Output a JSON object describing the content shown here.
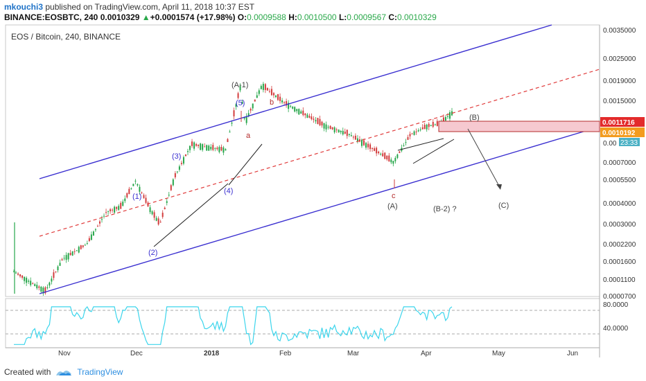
{
  "header": {
    "user": "mkouchi3",
    "published_text": "published on TradingView.com, April 11, 2018 10:37 EST",
    "symbol": "BINANCE:EOSBTC, 240",
    "last": "0.0010329",
    "change": "+0.0001574 (+17.98%)",
    "o_label": "O:",
    "o": "0.0009588",
    "h_label": "H:",
    "h": "0.0010500",
    "l_label": "L:",
    "l": "0.0009567",
    "c_label": "C:",
    "c": "0.0010329"
  },
  "chart_title": "EOS / Bitcoin, 240, BINANCE",
  "price_tags": {
    "red": "0.0011716",
    "orange": "0.0010192",
    "blue_time": "23:33",
    "current_partial": "0.00"
  },
  "footer": {
    "created_with": "Created with",
    "brand": "TradingView"
  },
  "colors": {
    "channel": "#3a2fd0",
    "median": "#e03a3a",
    "candle_up": "#26a64a",
    "candle_down": "#d23c3c",
    "rsi": "#3bd5ec",
    "box_fill": "#f6c9d0",
    "tag_red": "#e32b2b",
    "tag_orange": "#f39c1e",
    "tag_blue": "#4ab0c4"
  },
  "chart_data": {
    "type": "line",
    "title": "EOS / Bitcoin, 240, BINANCE",
    "scale": "log",
    "price_ticks": [
      "0.0035000",
      "0.0025000",
      "0.0019000",
      "0.0015000",
      "0.0007000",
      "0.0005500",
      "0.0004000",
      "0.0003000",
      "0.0002200",
      "0.0001600",
      "0.0001100",
      "0.0000700"
    ],
    "x_ticks": [
      "Nov",
      "Dec",
      "2018",
      "Feb",
      "Mar",
      "Apr",
      "May",
      "Jun"
    ],
    "rsi_ticks": [
      "80.0000",
      "40.0000"
    ],
    "price_series": [
      {
        "date": "2017-10-13",
        "close": 0.0001
      },
      {
        "date": "2017-10-20",
        "close": 8.5e-05
      },
      {
        "date": "2017-10-26",
        "close": 7.5e-05
      },
      {
        "date": "2017-11-02",
        "close": 0.00012
      },
      {
        "date": "2017-11-12",
        "close": 0.00015
      },
      {
        "date": "2017-11-20",
        "close": 0.00024
      },
      {
        "date": "2017-11-26",
        "close": 0.00026
      },
      {
        "date": "2017-12-02",
        "close": 0.00038
      },
      {
        "date": "2017-12-08",
        "close": 0.00025
      },
      {
        "date": "2017-12-12",
        "close": 0.0002
      },
      {
        "date": "2017-12-18",
        "close": 0.0004
      },
      {
        "date": "2017-12-25",
        "close": 0.00065
      },
      {
        "date": "2018-01-01",
        "close": 0.00062
      },
      {
        "date": "2018-01-08",
        "close": 0.0006
      },
      {
        "date": "2018-01-14",
        "close": 0.0015
      },
      {
        "date": "2018-01-16",
        "close": 0.0009
      },
      {
        "date": "2018-01-23",
        "close": 0.00155
      },
      {
        "date": "2018-02-01",
        "close": 0.0012
      },
      {
        "date": "2018-02-10",
        "close": 0.001
      },
      {
        "date": "2018-02-18",
        "close": 0.00085
      },
      {
        "date": "2018-02-28",
        "close": 0.00075
      },
      {
        "date": "2018-03-10",
        "close": 0.0006
      },
      {
        "date": "2018-03-18",
        "close": 0.0005
      },
      {
        "date": "2018-03-25",
        "close": 0.00075
      },
      {
        "date": "2018-04-01",
        "close": 0.00085
      },
      {
        "date": "2018-04-06",
        "close": 0.00088
      },
      {
        "date": "2018-04-11",
        "close": 0.0010329
      }
    ],
    "wave_labels": [
      "(A-1)",
      "(5)",
      "(3)",
      "(1)",
      "(2)",
      "(4)",
      "a",
      "b",
      "c",
      "(A)",
      "(B)",
      "(B-2) ?",
      "(C)"
    ]
  }
}
